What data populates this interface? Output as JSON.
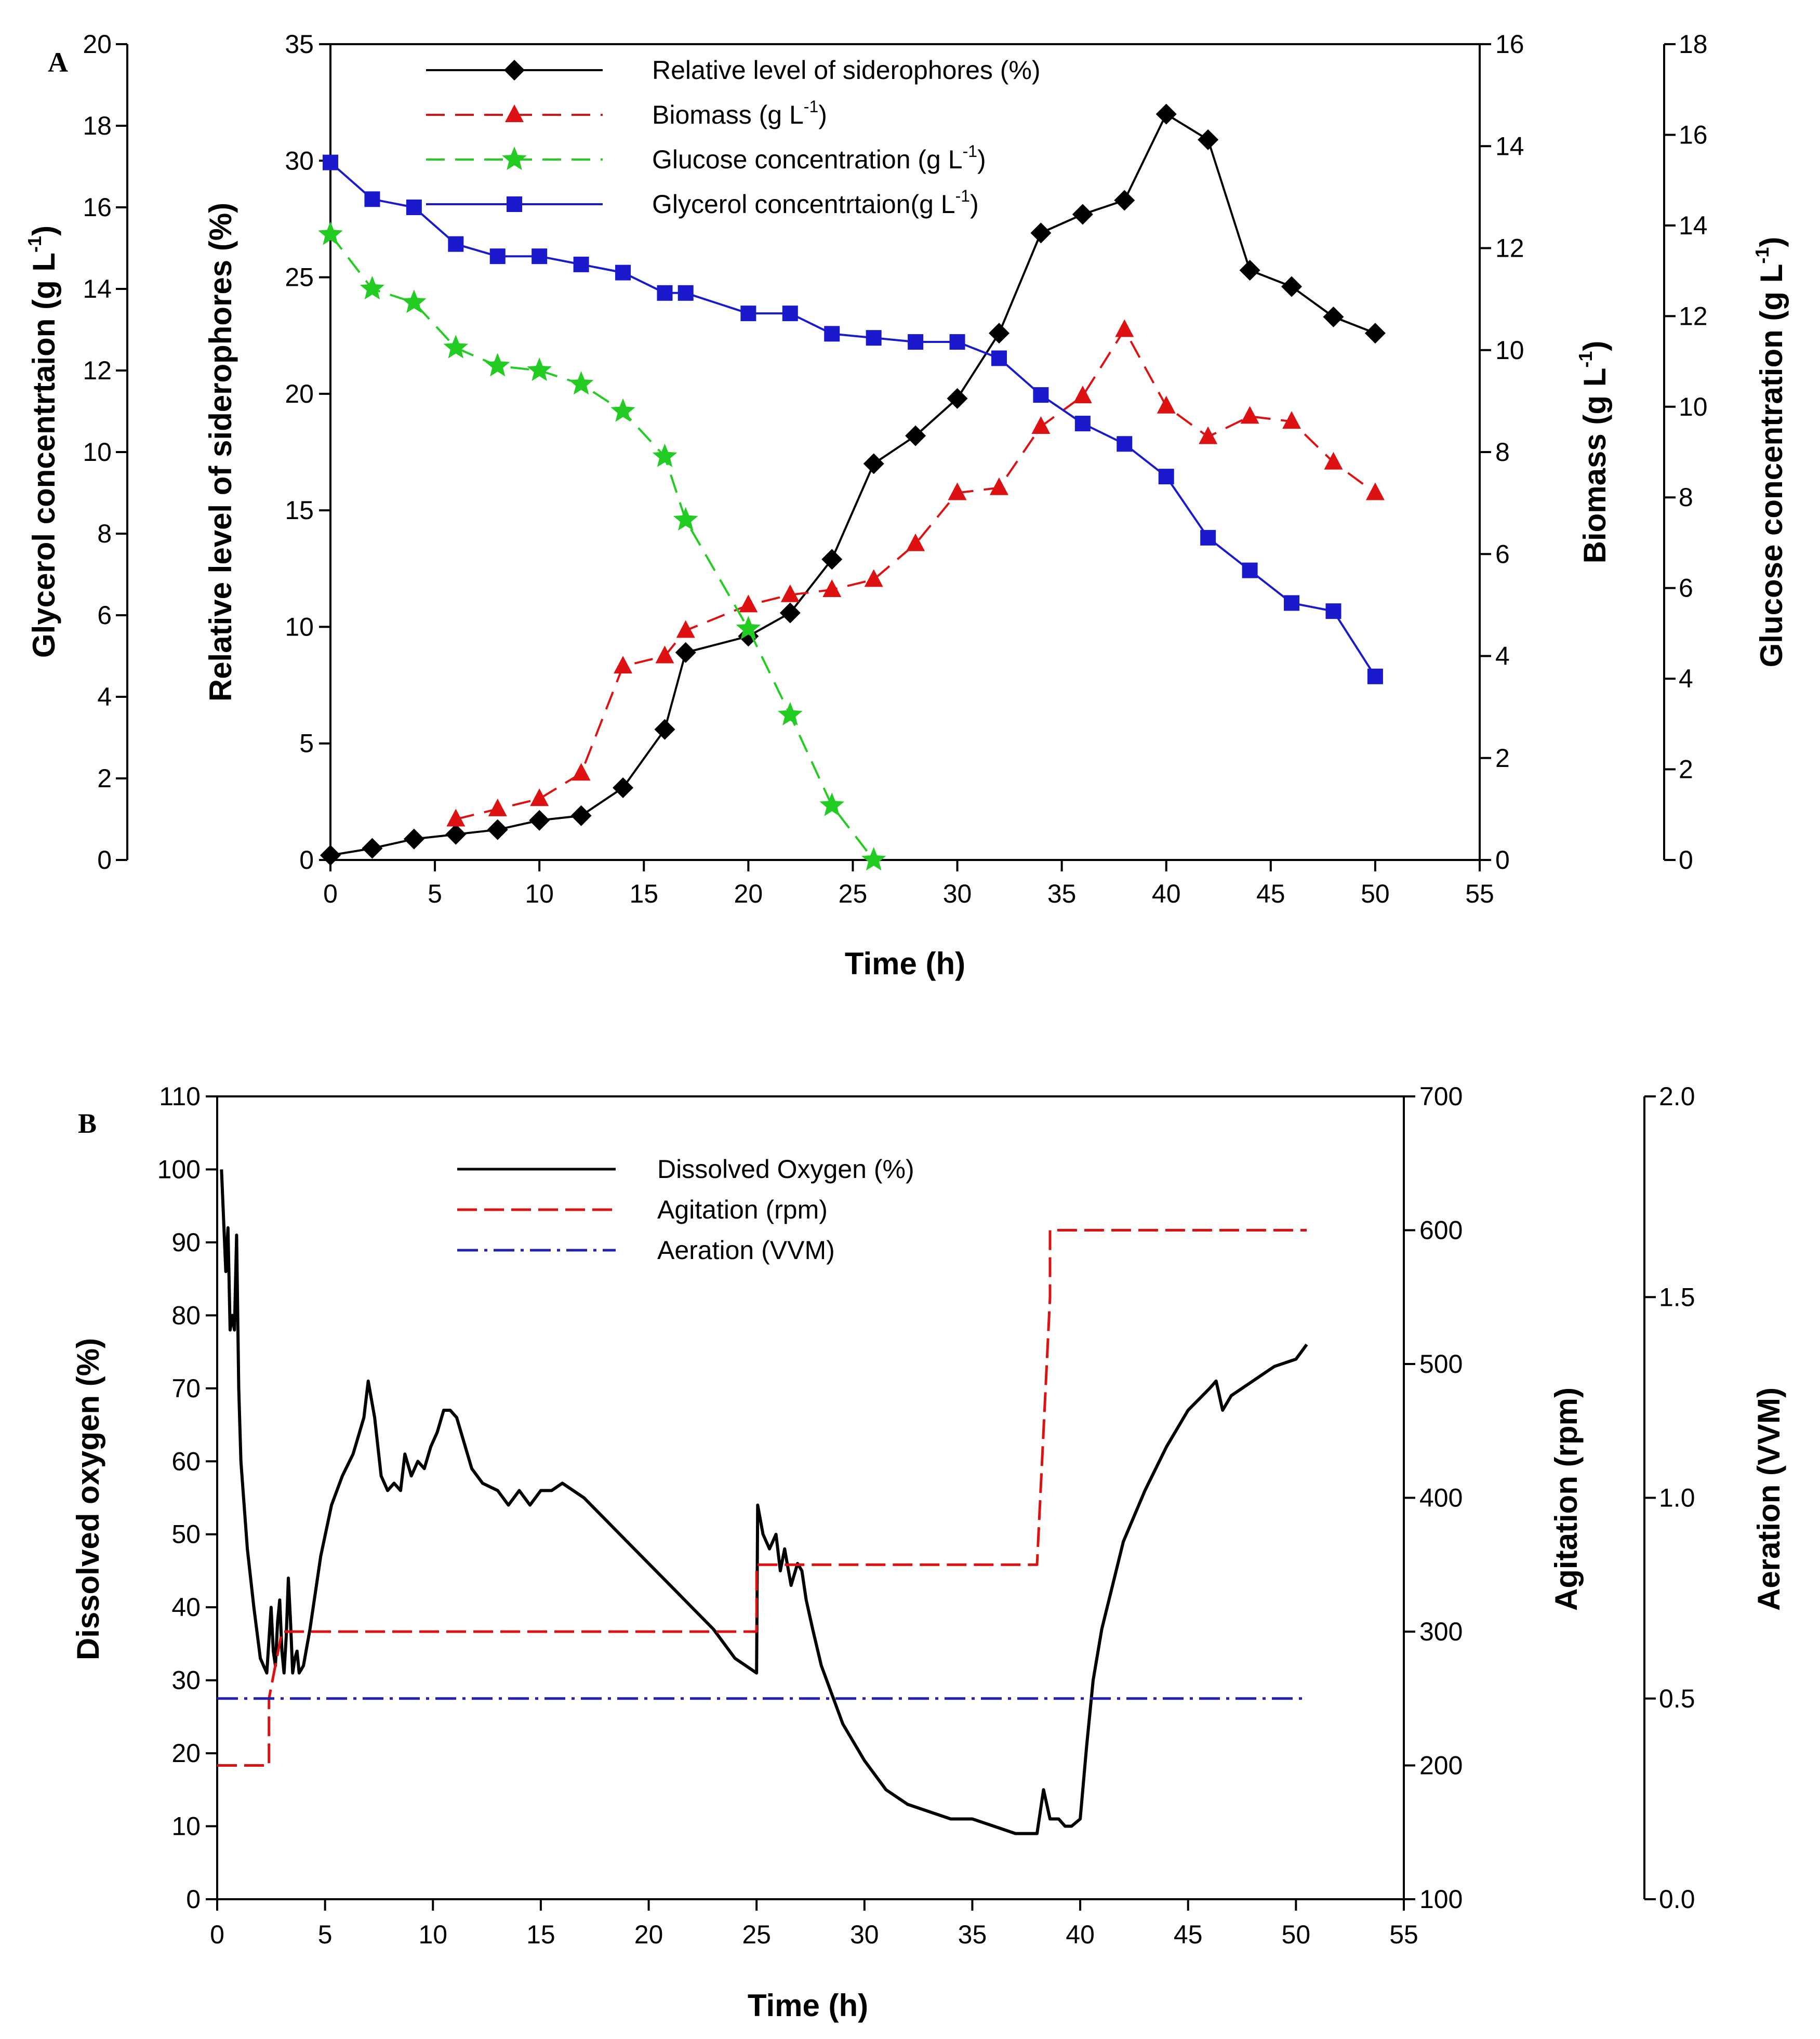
{
  "figure": {
    "panels": [
      "A",
      "B"
    ]
  },
  "chart_data": [
    {
      "panel": "A",
      "type": "line",
      "xlabel": "Time (h)",
      "xlim": [
        0,
        55
      ],
      "xticks": [
        0,
        5,
        10,
        15,
        20,
        25,
        30,
        35,
        40,
        45,
        50,
        55
      ],
      "axes": [
        {
          "id": "glycerol",
          "label": "Glycerol concentrtaion (g L-1)",
          "label_main": "Glycerol concentrtaion (g L",
          "label_sup": "-1",
          "label_end": ")",
          "ylim": [
            0,
            20
          ],
          "ticks": [
            0,
            2,
            4,
            6,
            8,
            10,
            12,
            14,
            16,
            18,
            20
          ],
          "position": "outer-left"
        },
        {
          "id": "siderophores",
          "label": "Relative level of siderophores (%)",
          "ylim": [
            0,
            35
          ],
          "ticks": [
            0,
            5,
            10,
            15,
            20,
            25,
            30,
            35
          ],
          "position": "left"
        },
        {
          "id": "biomass",
          "label": "Biomass (g L-1)",
          "label_main": "Biomass (g L",
          "label_sup": "-1",
          "label_end": ")",
          "ylim": [
            0,
            16
          ],
          "ticks": [
            0,
            2,
            4,
            6,
            8,
            10,
            12,
            14,
            16
          ],
          "position": "right"
        },
        {
          "id": "glucose",
          "label": "Glucose concentration (g L-1)",
          "label_main": "Glucose concentration (g L",
          "label_sup": "-1",
          "label_end": ")",
          "ylim": [
            0,
            18
          ],
          "ticks": [
            0,
            2,
            4,
            6,
            8,
            10,
            12,
            14,
            16,
            18
          ],
          "position": "outer-right"
        }
      ],
      "series": [
        {
          "name": "Relative level of siderophores (%)",
          "legend_main": "Relative level of siderophores (%)",
          "legend_sup": "",
          "legend_end": "",
          "axis": "siderophores",
          "color": "#000000",
          "marker": "diamond",
          "dash": "",
          "x": [
            0,
            2,
            4,
            6,
            8,
            10,
            12,
            14,
            16,
            17,
            20,
            22,
            24,
            26,
            28,
            30,
            32,
            34,
            36,
            38,
            40,
            42,
            44,
            46,
            48,
            50
          ],
          "y": [
            0.2,
            0.5,
            0.9,
            1.1,
            1.3,
            1.7,
            1.9,
            3.1,
            5.6,
            8.9,
            9.6,
            10.6,
            12.9,
            17.0,
            18.2,
            19.8,
            22.6,
            26.9,
            27.7,
            28.3,
            32.0,
            30.9,
            25.3,
            24.6,
            23.3,
            22.6
          ]
        },
        {
          "name": "Biomass (g L-1)",
          "legend_main": "Biomass (g L",
          "legend_sup": "-1",
          "legend_end": ")",
          "axis": "biomass",
          "color": "#dd1111",
          "marker": "triangle",
          "dash": "36 20",
          "x": [
            6,
            8,
            10,
            12,
            14,
            16,
            17,
            20,
            22,
            24,
            26,
            28,
            30,
            32,
            34,
            36,
            38,
            40,
            42,
            44,
            46,
            48,
            50
          ],
          "y": [
            0.8,
            1.0,
            1.2,
            1.7,
            3.8,
            4.0,
            4.5,
            5.0,
            5.2,
            5.3,
            5.5,
            6.2,
            7.2,
            7.3,
            8.5,
            9.1,
            10.4,
            8.9,
            8.3,
            8.7,
            8.6,
            7.8,
            7.2
          ]
        },
        {
          "name": "Glucose concentration (g L-1)",
          "legend_main": "Glucose concentration (g L",
          "legend_sup": "-1",
          "legend_end": ")",
          "axis": "glucose",
          "color": "#22cc22",
          "marker": "star",
          "dash": "36 20",
          "x": [
            0,
            2,
            4,
            6,
            8,
            10,
            12,
            14,
            16,
            17,
            20,
            22,
            24,
            26
          ],
          "y": [
            13.8,
            12.6,
            12.3,
            11.3,
            10.9,
            10.8,
            10.5,
            9.9,
            8.9,
            7.5,
            5.1,
            3.2,
            1.2,
            0.0
          ]
        },
        {
          "name": "Glycerol concentrtaion(g L-1)",
          "legend_main": "Glycerol concentrtaion(g L",
          "legend_sup": "-1",
          "legend_end": ")",
          "axis": "glycerol",
          "color": "#1a1acc",
          "marker": "square",
          "dash": "",
          "x": [
            0,
            2,
            4,
            6,
            8,
            10,
            12,
            14,
            16,
            17,
            20,
            22,
            24,
            26,
            28,
            30,
            32,
            34,
            36,
            38,
            40,
            42,
            44,
            46,
            48,
            50
          ],
          "y": [
            17.1,
            16.2,
            16.0,
            15.1,
            14.8,
            14.8,
            14.6,
            14.4,
            13.9,
            13.9,
            13.4,
            13.4,
            12.9,
            12.8,
            12.7,
            12.7,
            12.3,
            11.4,
            10.7,
            10.2,
            9.4,
            7.9,
            7.1,
            6.3,
            6.1,
            4.5
          ]
        }
      ],
      "legend_position": "top"
    },
    {
      "panel": "B",
      "type": "line",
      "xlabel": "Time (h)",
      "xlim": [
        0,
        55
      ],
      "xticks": [
        0,
        5,
        10,
        15,
        20,
        25,
        30,
        35,
        40,
        45,
        50,
        55
      ],
      "axes": [
        {
          "id": "do",
          "label": "Dissolved oxygen (%)",
          "ylim": [
            0,
            110
          ],
          "ticks": [
            0,
            10,
            20,
            30,
            40,
            50,
            60,
            70,
            80,
            90,
            100,
            110
          ],
          "position": "left"
        },
        {
          "id": "agitation",
          "label": "Agitation (rpm)",
          "ylim": [
            100,
            700
          ],
          "ticks": [
            100,
            200,
            300,
            400,
            500,
            600,
            700
          ],
          "position": "right"
        },
        {
          "id": "aeration",
          "label": "Aeration (VVM)",
          "ylim": [
            0.0,
            2.0
          ],
          "ticks": [
            "0.0",
            "0.5",
            "1.0",
            "1.5",
            "2.0"
          ],
          "position": "outer-right"
        }
      ],
      "series": [
        {
          "name": "Dissolved Oxygen (%)",
          "axis": "do",
          "color": "#000000",
          "dash": "",
          "x": [
            0.2,
            0.4,
            0.5,
            0.6,
            0.7,
            0.8,
            0.9,
            1.0,
            1.1,
            1.2,
            1.4,
            1.7,
            2.0,
            2.3,
            2.5,
            2.6,
            2.7,
            2.8,
            2.9,
            3.0,
            3.1,
            3.2,
            3.3,
            3.4,
            3.5,
            3.6,
            3.7,
            3.8,
            4.0,
            4.3,
            4.8,
            5.3,
            5.8,
            6.3,
            6.8,
            7.0,
            7.3,
            7.6,
            7.9,
            8.2,
            8.5,
            8.7,
            9.0,
            9.3,
            9.6,
            9.9,
            10.2,
            10.5,
            10.8,
            11.1,
            11.4,
            11.8,
            12.3,
            13.0,
            13.5,
            14.0,
            14.5,
            15.0,
            15.5,
            16.0,
            17.0,
            18.0,
            19.0,
            20.0,
            21.0,
            22.0,
            23.0,
            24.0,
            24.5,
            25.0,
            25.05,
            25.3,
            25.6,
            25.9,
            26.1,
            26.3,
            26.6,
            26.9,
            27.1,
            27.3,
            27.6,
            28.0,
            29.0,
            30.0,
            31.0,
            32.0,
            33.0,
            34.0,
            35.0,
            36.0,
            37.0,
            38.0,
            38.3,
            38.6,
            39.0,
            39.3,
            39.6,
            40.0,
            40.3,
            40.6,
            41.0,
            41.5,
            42.0,
            43.0,
            44.0,
            45.0,
            46.0,
            46.3,
            46.6,
            47.0,
            48.0,
            49.0,
            50.0,
            50.5
          ],
          "y": [
            100,
            86,
            92,
            78,
            80,
            78,
            91,
            70,
            60,
            56,
            48,
            40,
            33,
            31,
            40,
            34,
            32,
            38,
            41,
            34,
            31,
            36,
            44,
            38,
            31,
            33,
            34,
            31,
            32,
            37,
            47,
            54,
            58,
            61,
            66,
            71,
            66,
            58,
            56,
            57,
            56,
            61,
            58,
            60,
            59,
            62,
            64,
            67,
            67,
            66,
            63,
            59,
            57,
            56,
            54,
            56,
            54,
            56,
            56,
            57,
            55,
            52,
            49,
            46,
            43,
            40,
            37,
            33,
            32,
            31,
            54,
            50,
            48,
            50,
            45,
            48,
            43,
            46,
            45,
            41,
            37,
            32,
            24,
            19,
            15,
            13,
            12,
            11,
            11,
            10,
            9,
            9,
            15,
            11,
            11,
            10,
            10,
            11,
            21,
            30,
            37,
            43,
            49,
            56,
            62,
            67,
            70,
            71,
            67,
            69,
            71,
            73,
            74,
            76
          ]
        },
        {
          "name": "Agitation (rpm)",
          "axis": "agitation",
          "color": "#dd1111",
          "dash": "38 14",
          "x": [
            0,
            2.4,
            2.4,
            3.0,
            3.2,
            25.0,
            25.0,
            38.0,
            38.0,
            38.6,
            38.6,
            50.5
          ],
          "y": [
            200,
            200,
            250,
            300,
            300,
            300,
            350,
            350,
            350,
            550,
            600,
            600
          ]
        },
        {
          "name": "Aeration (VVM)",
          "axis": "aeration",
          "color": "#2222aa",
          "dash": "40 12 6 12",
          "x": [
            0,
            50.5
          ],
          "y": [
            0.5,
            0.5
          ]
        }
      ],
      "legend_position": "top"
    }
  ]
}
